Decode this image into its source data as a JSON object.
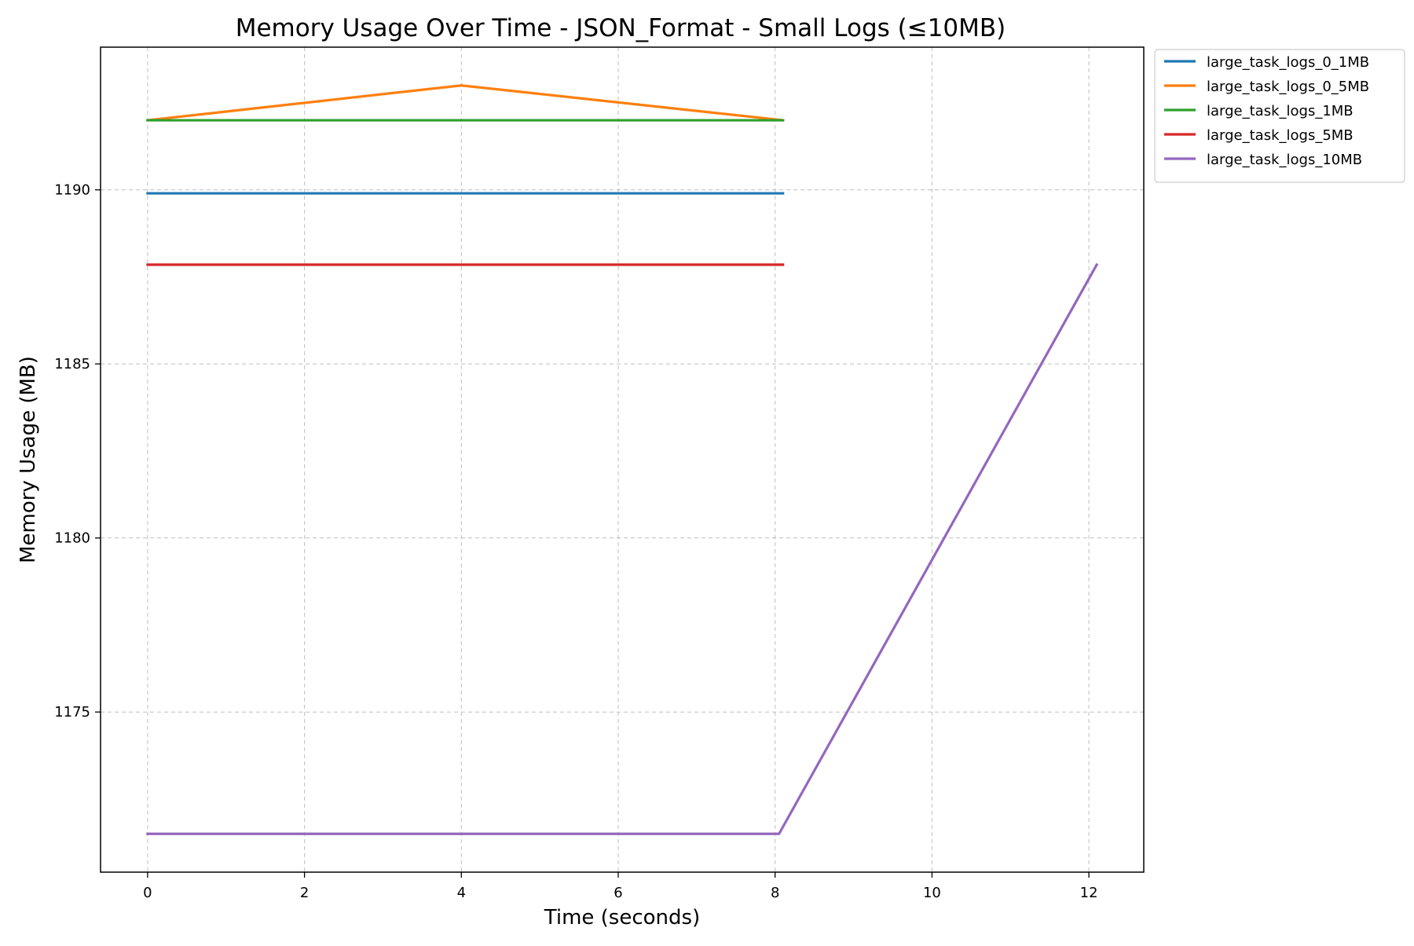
{
  "chart_data": {
    "type": "line",
    "title": "Memory Usage Over Time - JSON_Format - Small Logs (≤10MB)",
    "xlabel": "Time (seconds)",
    "ylabel": "Memory Usage (MB)",
    "xlim": [
      -0.6,
      12.7
    ],
    "ylim": [
      1170.4,
      1194.1
    ],
    "xticks": [
      0,
      2,
      4,
      6,
      8,
      10,
      12
    ],
    "yticks": [
      1175,
      1180,
      1185,
      1190
    ],
    "grid": true,
    "legend_position": "outside-top-right",
    "series": [
      {
        "name": "large_task_logs_0_1MB",
        "color": "#1f77b4",
        "x": [
          0,
          4,
          8.1
        ],
        "y": [
          1189.9,
          1189.9,
          1189.9
        ]
      },
      {
        "name": "large_task_logs_0_5MB",
        "color": "#ff7f0e",
        "x": [
          0,
          4,
          8.1
        ],
        "y": [
          1192,
          1193,
          1192
        ]
      },
      {
        "name": "large_task_logs_1MB",
        "color": "#2ca02c",
        "x": [
          0,
          4,
          8.1
        ],
        "y": [
          1192,
          1192,
          1192
        ]
      },
      {
        "name": "large_task_logs_5MB",
        "color": "#d62728",
        "x": [
          0,
          4,
          8.1
        ],
        "y": [
          1187.85,
          1187.85,
          1187.85
        ]
      },
      {
        "name": "large_task_logs_10MB",
        "color": "#9467bd",
        "x": [
          0,
          8.05,
          12.1
        ],
        "y": [
          1171.5,
          1171.5,
          1187.85
        ]
      }
    ]
  }
}
